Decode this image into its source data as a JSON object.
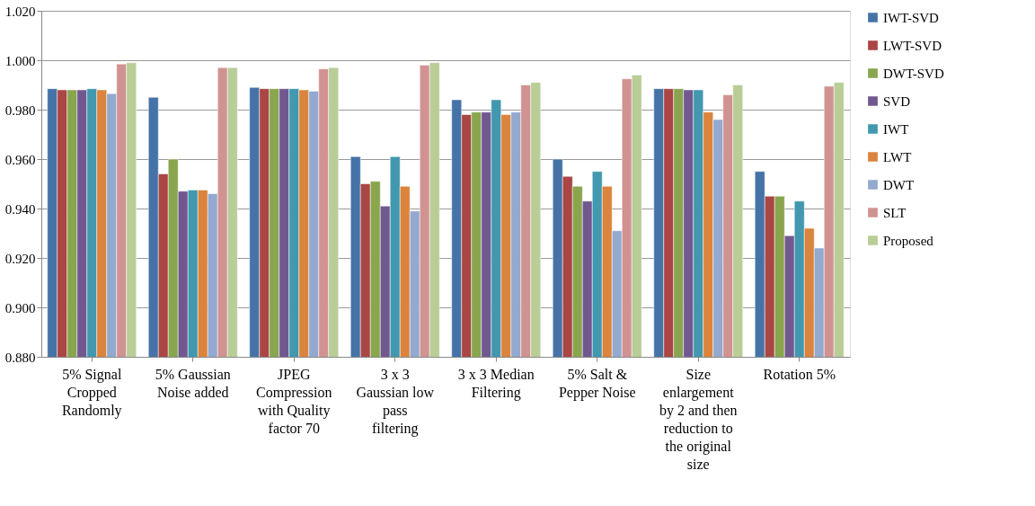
{
  "chart_data": {
    "type": "bar",
    "categories": [
      "5% Signal Cropped Randomly",
      "5% Gaussian Noise added",
      "JPEG Compression with Quality factor 70",
      "3 x 3 Gaussian low pass filtering",
      "3 x 3 Median Filtering",
      "5% Salt & Pepper Noise",
      "Size enlargement by 2 and then reduction to the original size",
      "Rotation 5%"
    ],
    "series": [
      {
        "name": "IWT-SVD",
        "color": "#4573a7",
        "values": [
          0.9885,
          0.985,
          0.989,
          0.961,
          0.984,
          0.96,
          0.9885,
          0.955
        ]
      },
      {
        "name": "LWT-SVD",
        "color": "#aa4644",
        "values": [
          0.988,
          0.954,
          0.9885,
          0.95,
          0.978,
          0.953,
          0.9885,
          0.945
        ]
      },
      {
        "name": "DWT-SVD",
        "color": "#89a54e",
        "values": [
          0.988,
          0.96,
          0.9885,
          0.951,
          0.979,
          0.949,
          0.9885,
          0.945
        ]
      },
      {
        "name": "SVD",
        "color": "#71588f",
        "values": [
          0.988,
          0.947,
          0.9885,
          0.941,
          0.979,
          0.943,
          0.988,
          0.929
        ]
      },
      {
        "name": "IWT",
        "color": "#4198af",
        "values": [
          0.9885,
          0.9475,
          0.9885,
          0.961,
          0.984,
          0.955,
          0.988,
          0.943
        ]
      },
      {
        "name": "LWT",
        "color": "#db843d",
        "values": [
          0.988,
          0.9475,
          0.988,
          0.949,
          0.978,
          0.949,
          0.979,
          0.932
        ]
      },
      {
        "name": "DWT",
        "color": "#93a9cf",
        "values": [
          0.9865,
          0.946,
          0.9875,
          0.939,
          0.979,
          0.931,
          0.976,
          0.924
        ]
      },
      {
        "name": "SLT",
        "color": "#d19392",
        "values": [
          0.9985,
          0.997,
          0.9965,
          0.998,
          0.99,
          0.9925,
          0.986,
          0.9895
        ]
      },
      {
        "name": "Proposed",
        "color": "#b9cd96",
        "values": [
          0.999,
          0.997,
          0.997,
          0.999,
          0.991,
          0.994,
          0.99,
          0.991
        ]
      }
    ],
    "ylim": [
      0.88,
      1.02
    ],
    "yticks": [
      {
        "value": 0.88,
        "label": "0.880"
      },
      {
        "value": 0.9,
        "label": "0.900"
      },
      {
        "value": 0.92,
        "label": "0.920"
      },
      {
        "value": 0.94,
        "label": "0.940"
      },
      {
        "value": 0.96,
        "label": "0.960"
      },
      {
        "value": 0.98,
        "label": "0.980"
      },
      {
        "value": 1.0,
        "label": "1.000"
      },
      {
        "value": 1.02,
        "label": "1.020"
      }
    ],
    "grid": "y",
    "legend": "right"
  }
}
